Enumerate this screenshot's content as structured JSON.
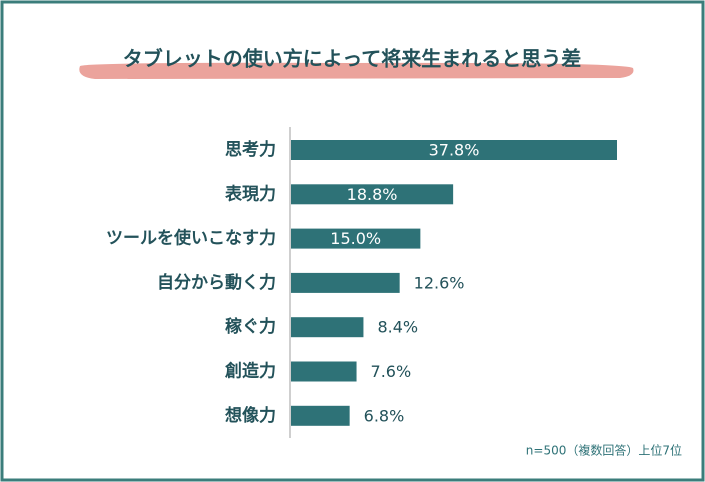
{
  "chart_data": {
    "type": "bar",
    "orientation": "horizontal",
    "title": "タブレットの使い方によって将来生まれると思う差",
    "categories": [
      "思考力",
      "表現力",
      "ツールを使いこなす力",
      "自分から動く力",
      "稼ぐ力",
      "創造力",
      "想像力"
    ],
    "values": [
      37.8,
      18.8,
      15.0,
      12.6,
      8.4,
      7.6,
      6.8
    ],
    "value_labels": [
      "37.8%",
      "18.8%",
      "15.0%",
      "12.6%",
      "8.4%",
      "7.6%",
      "6.8%"
    ],
    "color": "#2e7277",
    "note": "n=500（複数回答）上位7位"
  }
}
